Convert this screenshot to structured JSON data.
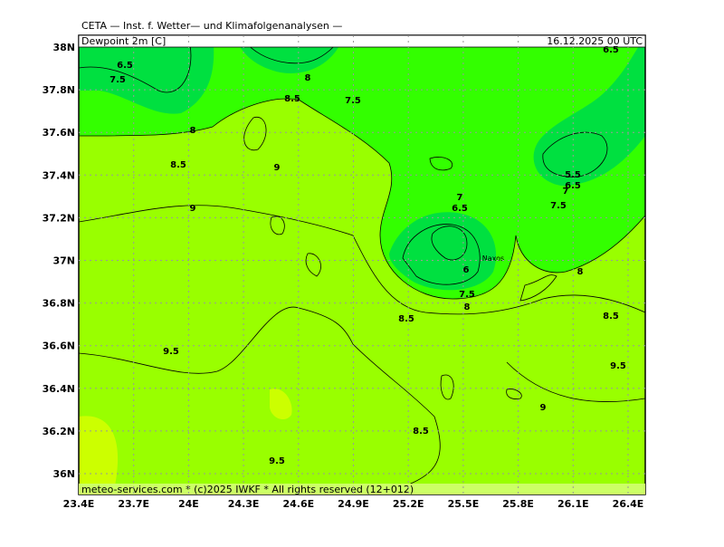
{
  "header": {
    "title": "CETA — Inst. f. Wetter— und Klimafolgenanalysen —",
    "field": "Dewpoint 2m [C]",
    "valid": "16.12.2025 00 UTC"
  },
  "footer": "meteo-services.com * (c)2025 IWKF * All rights reserved (12+012)",
  "lat_labels": [
    "38N",
    "37.8N",
    "37.6N",
    "37.4N",
    "37.2N",
    "37N",
    "36.8N",
    "36.6N",
    "36.4N",
    "36.2N",
    "36N"
  ],
  "lon_labels": [
    "23.4E",
    "23.7E",
    "24E",
    "24.3E",
    "24.6E",
    "24.9E",
    "25.2E",
    "25.5E",
    "25.8E",
    "26.1E",
    "26.4E"
  ],
  "contour_labels": [
    "6.5",
    "7.5",
    "8",
    "8.5",
    "7.5",
    "8",
    "8.5",
    "9",
    "9",
    "7",
    "6.5",
    "6",
    "7.5",
    "8",
    "8.5",
    "5.5",
    "6.5",
    "7",
    "7.5",
    "8",
    "8.5",
    "9.5",
    "9",
    "8.5",
    "9.5",
    "9.5",
    "6.5"
  ],
  "place": "Naxos"
}
